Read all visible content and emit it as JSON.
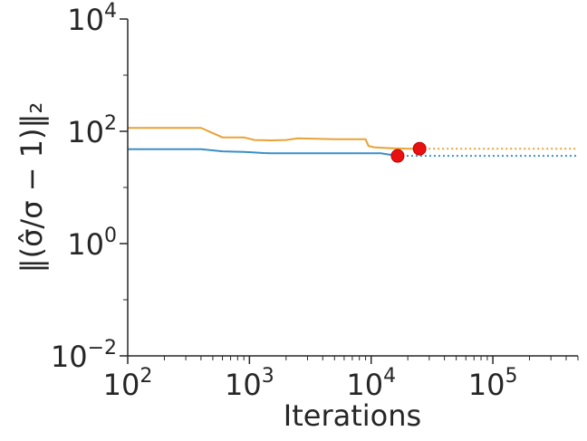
{
  "chart_data": {
    "type": "line",
    "title": "",
    "xlabel": "Iterations",
    "ylabel": "‖(σ̂/σ − 1)‖₂",
    "xscale": "log",
    "yscale": "log",
    "xlim": [
      100,
      500000
    ],
    "ylim": [
      0.01,
      10000
    ],
    "grid": false,
    "legend": "none",
    "x_ticks": [
      {
        "value": 100,
        "base": "10",
        "exp": "2"
      },
      {
        "value": 1000,
        "base": "10",
        "exp": "3"
      },
      {
        "value": 10000,
        "base": "10",
        "exp": "4"
      },
      {
        "value": 100000,
        "base": "10",
        "exp": "5"
      }
    ],
    "y_ticks": [
      {
        "value": 0.01,
        "base": "10",
        "exp": "−2"
      },
      {
        "value": 1,
        "base": "10",
        "exp": "0"
      },
      {
        "value": 100,
        "base": "10",
        "exp": "2"
      },
      {
        "value": 10000,
        "base": "10",
        "exp": "4"
      }
    ],
    "series": [
      {
        "color": "#3a8fc9",
        "x": [
          100,
          400,
          600,
          900,
          1100,
          1300,
          1500,
          3000,
          8000,
          12000,
          16500
        ],
        "y": [
          48,
          48,
          44,
          43,
          42,
          41,
          40.5,
          40.5,
          40.5,
          40.5,
          36.5
        ],
        "extension": {
          "x": [
            16500,
            500000
          ],
          "y": [
            36.5,
            36.5
          ],
          "style": "dotted"
        },
        "marker": {
          "x": 16500,
          "y": 36.5,
          "color": "#e81010"
        }
      },
      {
        "color": "#e8a237",
        "x": [
          100,
          400,
          600,
          900,
          1100,
          1500,
          2000,
          2500,
          5000,
          9000,
          9500,
          10500,
          12000,
          15000,
          20000,
          25000
        ],
        "y": [
          115,
          115,
          78,
          78,
          70,
          69,
          70,
          75,
          72,
          72,
          55,
          52,
          51,
          50,
          49,
          49
        ],
        "extension": {
          "x": [
            25000,
            500000
          ],
          "y": [
            49,
            49
          ],
          "style": "dotted"
        },
        "marker": {
          "x": 25000,
          "y": 49,
          "color": "#e81010"
        }
      }
    ]
  }
}
